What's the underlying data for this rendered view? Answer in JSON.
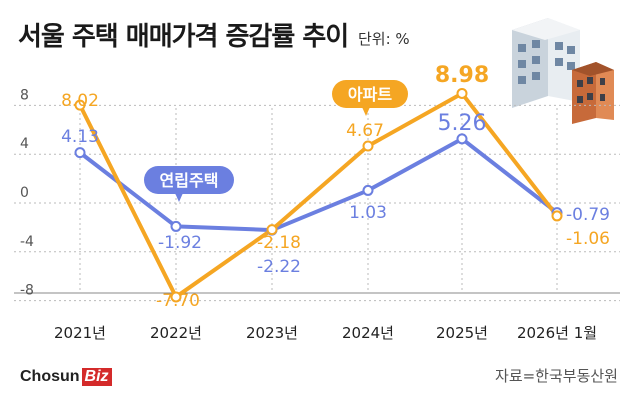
{
  "title": "서울 주택 매매가격 증감률 추이",
  "unit": "단위: %",
  "source": "자료=한국부동산원",
  "logo": {
    "text": "Chosun",
    "accent": "Biz"
  },
  "colors": {
    "apartment": "#f5a623",
    "villa": "#6b7fe0",
    "grid": "#bbbbbb",
    "axis": "#555555"
  },
  "chart_data": {
    "type": "line",
    "categories": [
      "2021년",
      "2022년",
      "2023년",
      "2024년",
      "2025년",
      "2026년 1월"
    ],
    "yticks": [
      8,
      4,
      0,
      -4,
      -8
    ],
    "ylim": [
      -10,
      10
    ],
    "series": [
      {
        "name": "아파트",
        "values": [
          8.02,
          -7.7,
          -2.18,
          4.67,
          8.98,
          -1.06
        ],
        "labels": [
          "8.02",
          "-7.70",
          "-2.18",
          "4.67",
          "8.98",
          "-1.06"
        ]
      },
      {
        "name": "연립주택",
        "values": [
          4.13,
          -1.92,
          -2.22,
          1.03,
          5.26,
          -0.79
        ],
        "labels": [
          "4.13",
          "-1.92",
          "-2.22",
          "1.03",
          "5.26",
          "-0.79"
        ]
      }
    ]
  }
}
